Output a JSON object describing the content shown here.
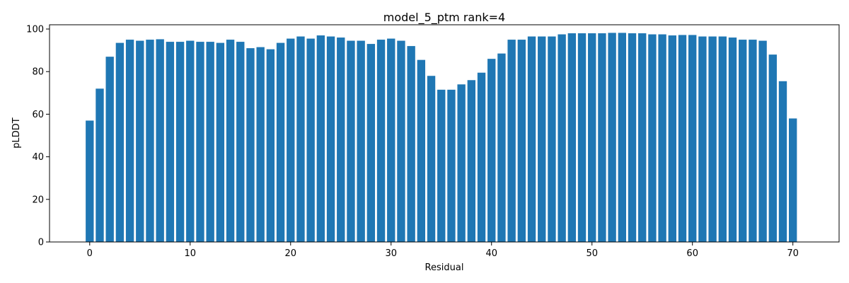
{
  "chart_data": {
    "type": "bar",
    "title": "model_5_ptm rank=4",
    "xlabel": "Residual",
    "ylabel": "pLDDT",
    "xlim": [
      -4,
      74.6
    ],
    "ylim": [
      0,
      102
    ],
    "xticks": [
      0,
      10,
      20,
      30,
      40,
      50,
      60,
      70
    ],
    "yticks": [
      0,
      20,
      40,
      60,
      80,
      100
    ],
    "grid": false,
    "bar_color": "#1f77b4",
    "x": [
      0,
      1,
      2,
      3,
      4,
      5,
      6,
      7,
      8,
      9,
      10,
      11,
      12,
      13,
      14,
      15,
      16,
      17,
      18,
      19,
      20,
      21,
      22,
      23,
      24,
      25,
      26,
      27,
      28,
      29,
      30,
      31,
      32,
      33,
      34,
      35,
      36,
      37,
      38,
      39,
      40,
      41,
      42,
      43,
      44,
      45,
      46,
      47,
      48,
      49,
      50,
      51,
      52,
      53,
      54,
      55,
      56,
      57,
      58,
      59,
      60,
      61,
      62,
      63,
      64,
      65,
      66,
      67,
      68,
      69,
      70
    ],
    "values": [
      57,
      72,
      87,
      93.5,
      95,
      94.5,
      95,
      95.2,
      94,
      94,
      94.5,
      94,
      94,
      93.5,
      95,
      94,
      91,
      91.5,
      90.5,
      93.5,
      95.5,
      96.5,
      95.5,
      97,
      96.5,
      96,
      94.5,
      94.5,
      93,
      95,
      95.5,
      94.5,
      92,
      85.5,
      78,
      71.5,
      71.5,
      74,
      76,
      79.5,
      86,
      88.5,
      95,
      95,
      96.5,
      96.5,
      96.5,
      97.5,
      98,
      98,
      98,
      98,
      98.2,
      98.2,
      98,
      98,
      97.5,
      97.5,
      97,
      97.2,
      97.2,
      96.5,
      96.5,
      96.5,
      96,
      95,
      95,
      94.5,
      88,
      75.5,
      58
    ]
  }
}
